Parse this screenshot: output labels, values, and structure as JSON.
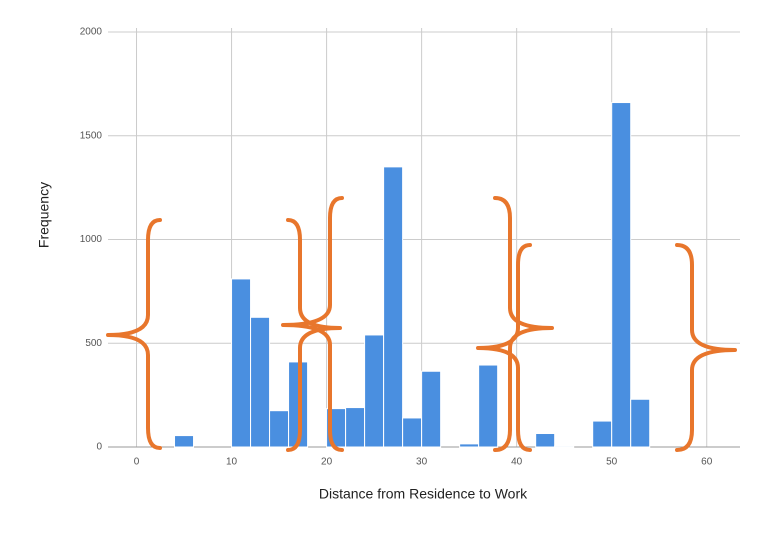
{
  "chart_data": {
    "type": "histogram",
    "x_label": "Distance from Residence to Work",
    "y_label": "Frequency",
    "bins": [
      4,
      6,
      8,
      10,
      12,
      14,
      16,
      18,
      20,
      22,
      24,
      26,
      28,
      30,
      32,
      34,
      36,
      38,
      40,
      42,
      44,
      46,
      48,
      50,
      52,
      54
    ],
    "counts": [
      55,
      0,
      0,
      810,
      625,
      175,
      410,
      0,
      185,
      190,
      540,
      1350,
      140,
      365,
      0,
      15,
      395,
      0,
      0,
      65,
      5,
      0,
      125,
      1660,
      230
    ],
    "color": "#4a8fe0",
    "xlim": [
      -3,
      63.5
    ],
    "xticks": [
      0,
      10,
      20,
      30,
      40,
      50,
      60
    ],
    "ylim": [
      0,
      2000
    ],
    "yticks": [
      0,
      500,
      1000,
      1500,
      2000
    ],
    "grid": true
  }
}
